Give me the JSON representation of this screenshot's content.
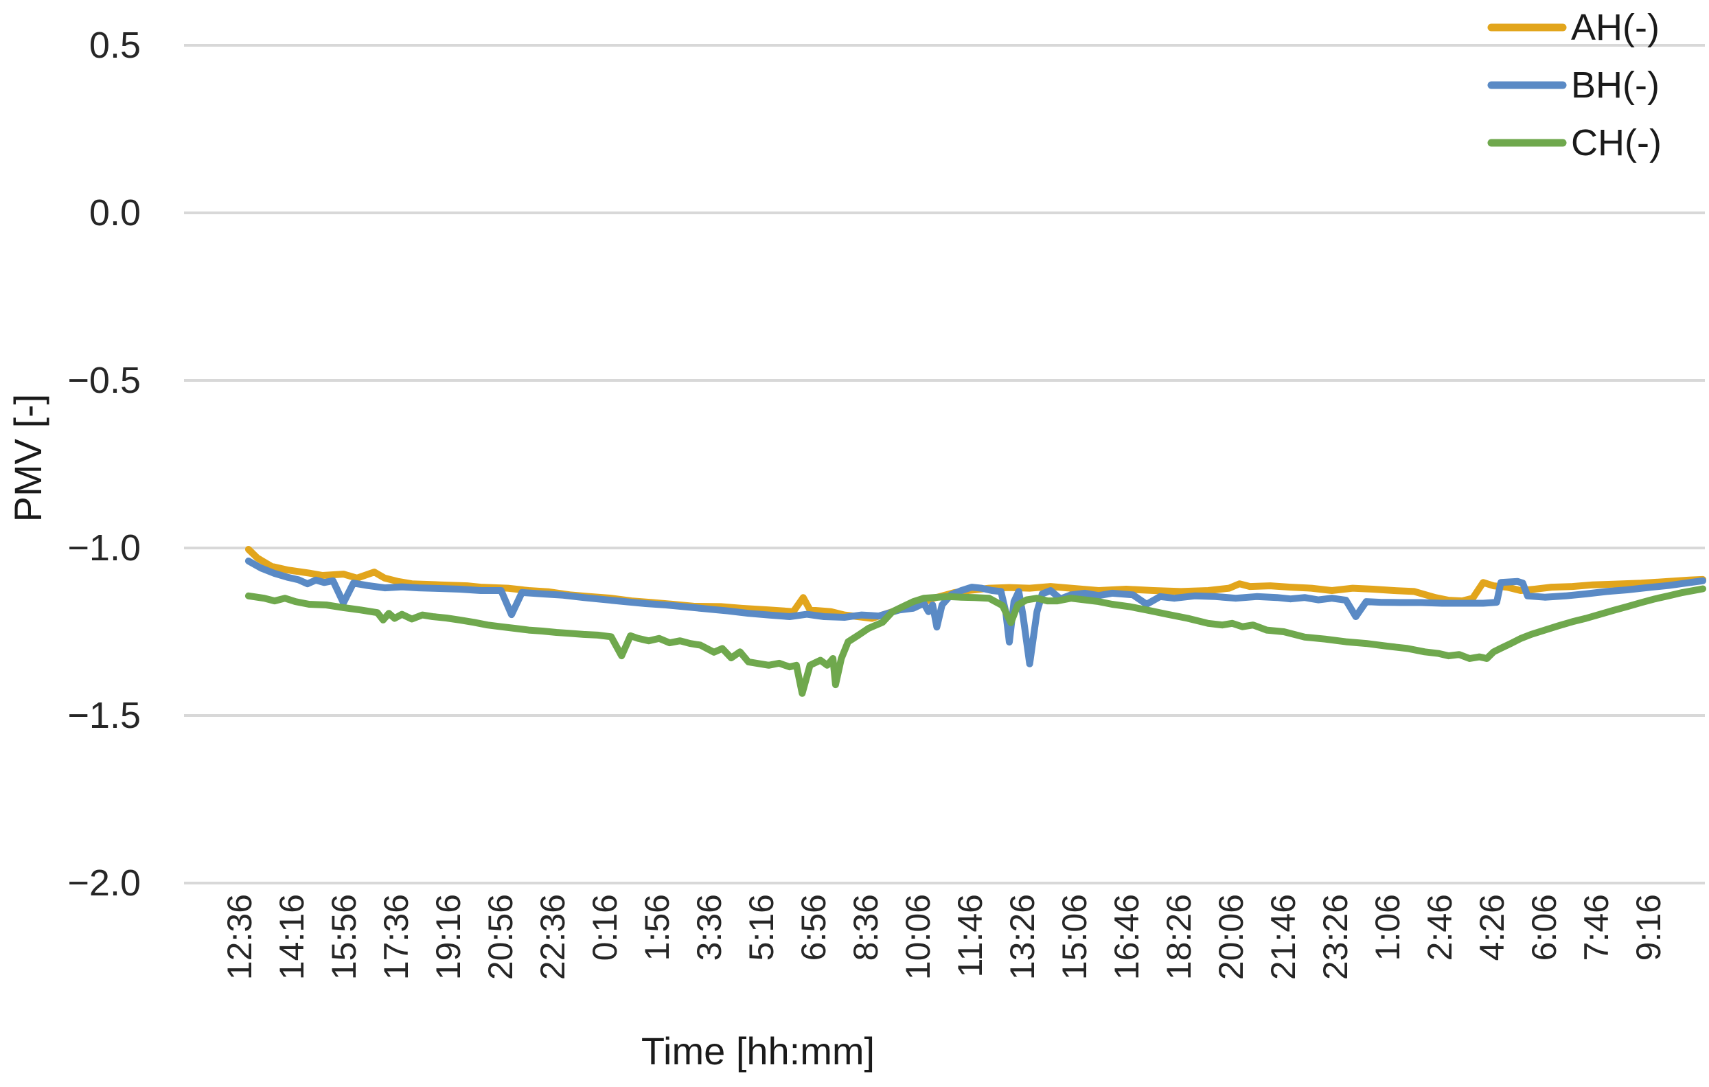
{
  "chart_data": {
    "type": "line",
    "title": "",
    "xlabel": "Time [hh:mm]",
    "ylabel": "PMV [-]",
    "ylim": [
      -2.0,
      0.5
    ],
    "grid": "horizontal",
    "legend_position": "top-right",
    "colors": {
      "background": "#FFFFFF",
      "gridline": "#D8D8D8",
      "axis_text": "#262626"
    },
    "y_ticks": [
      "0.5",
      "0.0",
      "−0.5",
      "−1.0",
      "−1.5",
      "−2.0"
    ],
    "y_tick_values": [
      0.5,
      0.0,
      -0.5,
      -1.0,
      -1.5,
      -2.0
    ],
    "x_tick_labels": [
      "12:36",
      "14:16",
      "15:56",
      "17:36",
      "19:16",
      "20:56",
      "22:36",
      "0:16",
      "1:56",
      "3:36",
      "5:16",
      "6:56",
      "8:36",
      "10:06",
      "11:46",
      "13:26",
      "15:06",
      "16:46",
      "18:26",
      "20:06",
      "21:46",
      "23:26",
      "1:06",
      "2:46",
      "4:26",
      "6:06",
      "7:46",
      "9:16"
    ],
    "x_unit": "minutes since first tick (12:36)",
    "x_tick_interval_minutes": 100,
    "series": [
      {
        "id": "ah",
        "name": "AH(-)",
        "color": "#E2A51C",
        "points": [
          [
            17,
            -1.004
          ],
          [
            34,
            -1.03
          ],
          [
            61,
            -1.055
          ],
          [
            93,
            -1.066
          ],
          [
            133,
            -1.075
          ],
          [
            159,
            -1.082
          ],
          [
            199,
            -1.078
          ],
          [
            225,
            -1.09
          ],
          [
            258,
            -1.072
          ],
          [
            278,
            -1.09
          ],
          [
            304,
            -1.1
          ],
          [
            330,
            -1.107
          ],
          [
            383,
            -1.11
          ],
          [
            436,
            -1.113
          ],
          [
            462,
            -1.117
          ],
          [
            514,
            -1.12
          ],
          [
            554,
            -1.127
          ],
          [
            593,
            -1.131
          ],
          [
            633,
            -1.14
          ],
          [
            672,
            -1.145
          ],
          [
            712,
            -1.15
          ],
          [
            751,
            -1.158
          ],
          [
            791,
            -1.163
          ],
          [
            830,
            -1.168
          ],
          [
            870,
            -1.174
          ],
          [
            922,
            -1.175
          ],
          [
            962,
            -1.18
          ],
          [
            1014,
            -1.185
          ],
          [
            1061,
            -1.19
          ],
          [
            1080,
            -1.148
          ],
          [
            1093,
            -1.185
          ],
          [
            1133,
            -1.19
          ],
          [
            1159,
            -1.2
          ],
          [
            1212,
            -1.21
          ],
          [
            1251,
            -1.19
          ],
          [
            1291,
            -1.174
          ],
          [
            1330,
            -1.15
          ],
          [
            1370,
            -1.133
          ],
          [
            1396,
            -1.127
          ],
          [
            1436,
            -1.12
          ],
          [
            1475,
            -1.118
          ],
          [
            1514,
            -1.12
          ],
          [
            1554,
            -1.115
          ],
          [
            1593,
            -1.12
          ],
          [
            1646,
            -1.127
          ],
          [
            1699,
            -1.123
          ],
          [
            1751,
            -1.127
          ],
          [
            1804,
            -1.13
          ],
          [
            1856,
            -1.127
          ],
          [
            1896,
            -1.12
          ],
          [
            1916,
            -1.107
          ],
          [
            1936,
            -1.115
          ],
          [
            1975,
            -1.113
          ],
          [
            2014,
            -1.117
          ],
          [
            2054,
            -1.12
          ],
          [
            2093,
            -1.127
          ],
          [
            2133,
            -1.12
          ],
          [
            2172,
            -1.123
          ],
          [
            2212,
            -1.127
          ],
          [
            2251,
            -1.13
          ],
          [
            2291,
            -1.148
          ],
          [
            2317,
            -1.156
          ],
          [
            2343,
            -1.158
          ],
          [
            2363,
            -1.15
          ],
          [
            2383,
            -1.103
          ],
          [
            2403,
            -1.113
          ],
          [
            2429,
            -1.117
          ],
          [
            2455,
            -1.127
          ],
          [
            2482,
            -1.123
          ],
          [
            2514,
            -1.117
          ],
          [
            2554,
            -1.115
          ],
          [
            2593,
            -1.11
          ],
          [
            2633,
            -1.108
          ],
          [
            2686,
            -1.105
          ],
          [
            2738,
            -1.1
          ],
          [
            2778,
            -1.096
          ],
          [
            2804,
            -1.094
          ]
        ]
      },
      {
        "id": "bh",
        "name": "BH(-)",
        "color": "#5A8AC5",
        "points": [
          [
            17,
            -1.039
          ],
          [
            41,
            -1.06
          ],
          [
            67,
            -1.076
          ],
          [
            93,
            -1.088
          ],
          [
            113,
            -1.095
          ],
          [
            130,
            -1.107
          ],
          [
            146,
            -1.096
          ],
          [
            162,
            -1.103
          ],
          [
            179,
            -1.098
          ],
          [
            199,
            -1.164
          ],
          [
            218,
            -1.105
          ],
          [
            245,
            -1.112
          ],
          [
            278,
            -1.119
          ],
          [
            311,
            -1.116
          ],
          [
            343,
            -1.119
          ],
          [
            383,
            -1.121
          ],
          [
            422,
            -1.123
          ],
          [
            462,
            -1.127
          ],
          [
            501,
            -1.127
          ],
          [
            521,
            -1.199
          ],
          [
            541,
            -1.133
          ],
          [
            580,
            -1.137
          ],
          [
            620,
            -1.141
          ],
          [
            659,
            -1.148
          ],
          [
            699,
            -1.154
          ],
          [
            738,
            -1.16
          ],
          [
            778,
            -1.166
          ],
          [
            817,
            -1.17
          ],
          [
            857,
            -1.176
          ],
          [
            896,
            -1.182
          ],
          [
            936,
            -1.188
          ],
          [
            975,
            -1.195
          ],
          [
            1014,
            -1.2
          ],
          [
            1054,
            -1.205
          ],
          [
            1087,
            -1.198
          ],
          [
            1120,
            -1.205
          ],
          [
            1159,
            -1.207
          ],
          [
            1192,
            -1.2
          ],
          [
            1225,
            -1.203
          ],
          [
            1264,
            -1.185
          ],
          [
            1291,
            -1.18
          ],
          [
            1311,
            -1.165
          ],
          [
            1320,
            -1.19
          ],
          [
            1328,
            -1.17
          ],
          [
            1336,
            -1.236
          ],
          [
            1346,
            -1.17
          ],
          [
            1363,
            -1.14
          ],
          [
            1383,
            -1.127
          ],
          [
            1403,
            -1.117
          ],
          [
            1422,
            -1.12
          ],
          [
            1442,
            -1.127
          ],
          [
            1459,
            -1.13
          ],
          [
            1468,
            -1.19
          ],
          [
            1475,
            -1.281
          ],
          [
            1484,
            -1.16
          ],
          [
            1493,
            -1.13
          ],
          [
            1501,
            -1.2
          ],
          [
            1514,
            -1.346
          ],
          [
            1528,
            -1.19
          ],
          [
            1538,
            -1.137
          ],
          [
            1554,
            -1.127
          ],
          [
            1573,
            -1.152
          ],
          [
            1593,
            -1.14
          ],
          [
            1620,
            -1.135
          ],
          [
            1646,
            -1.142
          ],
          [
            1672,
            -1.135
          ],
          [
            1712,
            -1.14
          ],
          [
            1738,
            -1.168
          ],
          [
            1764,
            -1.145
          ],
          [
            1791,
            -1.15
          ],
          [
            1830,
            -1.143
          ],
          [
            1870,
            -1.145
          ],
          [
            1909,
            -1.15
          ],
          [
            1949,
            -1.145
          ],
          [
            1988,
            -1.148
          ],
          [
            2014,
            -1.152
          ],
          [
            2041,
            -1.148
          ],
          [
            2067,
            -1.155
          ],
          [
            2093,
            -1.15
          ],
          [
            2120,
            -1.156
          ],
          [
            2139,
            -1.205
          ],
          [
            2159,
            -1.16
          ],
          [
            2186,
            -1.162
          ],
          [
            2225,
            -1.163
          ],
          [
            2264,
            -1.163
          ],
          [
            2304,
            -1.165
          ],
          [
            2343,
            -1.165
          ],
          [
            2383,
            -1.165
          ],
          [
            2409,
            -1.162
          ],
          [
            2417,
            -1.103
          ],
          [
            2449,
            -1.1
          ],
          [
            2459,
            -1.105
          ],
          [
            2468,
            -1.143
          ],
          [
            2501,
            -1.147
          ],
          [
            2541,
            -1.143
          ],
          [
            2580,
            -1.137
          ],
          [
            2620,
            -1.13
          ],
          [
            2659,
            -1.125
          ],
          [
            2699,
            -1.118
          ],
          [
            2738,
            -1.112
          ],
          [
            2771,
            -1.105
          ],
          [
            2804,
            -1.098
          ]
        ]
      },
      {
        "id": "ch",
        "name": "CH(-)",
        "color": "#6FA84D",
        "points": [
          [
            17,
            -1.143
          ],
          [
            47,
            -1.15
          ],
          [
            67,
            -1.158
          ],
          [
            87,
            -1.15
          ],
          [
            107,
            -1.16
          ],
          [
            133,
            -1.168
          ],
          [
            166,
            -1.17
          ],
          [
            199,
            -1.178
          ],
          [
            232,
            -1.185
          ],
          [
            264,
            -1.193
          ],
          [
            275,
            -1.215
          ],
          [
            286,
            -1.195
          ],
          [
            297,
            -1.21
          ],
          [
            311,
            -1.198
          ],
          [
            330,
            -1.212
          ],
          [
            350,
            -1.2
          ],
          [
            370,
            -1.205
          ],
          [
            396,
            -1.209
          ],
          [
            422,
            -1.215
          ],
          [
            449,
            -1.222
          ],
          [
            475,
            -1.23
          ],
          [
            501,
            -1.235
          ],
          [
            528,
            -1.24
          ],
          [
            554,
            -1.245
          ],
          [
            580,
            -1.248
          ],
          [
            607,
            -1.252
          ],
          [
            633,
            -1.255
          ],
          [
            659,
            -1.258
          ],
          [
            686,
            -1.26
          ],
          [
            712,
            -1.265
          ],
          [
            732,
            -1.322
          ],
          [
            749,
            -1.262
          ],
          [
            764,
            -1.27
          ],
          [
            784,
            -1.277
          ],
          [
            804,
            -1.27
          ],
          [
            824,
            -1.283
          ],
          [
            844,
            -1.277
          ],
          [
            863,
            -1.285
          ],
          [
            883,
            -1.29
          ],
          [
            909,
            -1.311
          ],
          [
            925,
            -1.3
          ],
          [
            942,
            -1.328
          ],
          [
            959,
            -1.31
          ],
          [
            975,
            -1.34
          ],
          [
            995,
            -1.345
          ],
          [
            1014,
            -1.35
          ],
          [
            1034,
            -1.344
          ],
          [
            1054,
            -1.355
          ],
          [
            1067,
            -1.35
          ],
          [
            1078,
            -1.434
          ],
          [
            1093,
            -1.35
          ],
          [
            1113,
            -1.335
          ],
          [
            1126,
            -1.35
          ],
          [
            1137,
            -1.33
          ],
          [
            1142,
            -1.408
          ],
          [
            1153,
            -1.33
          ],
          [
            1166,
            -1.28
          ],
          [
            1186,
            -1.26
          ],
          [
            1205,
            -1.24
          ],
          [
            1232,
            -1.222
          ],
          [
            1251,
            -1.19
          ],
          [
            1271,
            -1.175
          ],
          [
            1291,
            -1.16
          ],
          [
            1311,
            -1.15
          ],
          [
            1330,
            -1.148
          ],
          [
            1357,
            -1.145
          ],
          [
            1383,
            -1.147
          ],
          [
            1409,
            -1.148
          ],
          [
            1436,
            -1.15
          ],
          [
            1462,
            -1.172
          ],
          [
            1478,
            -1.223
          ],
          [
            1491,
            -1.17
          ],
          [
            1508,
            -1.155
          ],
          [
            1528,
            -1.15
          ],
          [
            1548,
            -1.158
          ],
          [
            1567,
            -1.158
          ],
          [
            1593,
            -1.15
          ],
          [
            1620,
            -1.155
          ],
          [
            1646,
            -1.16
          ],
          [
            1672,
            -1.168
          ],
          [
            1705,
            -1.175
          ],
          [
            1738,
            -1.185
          ],
          [
            1778,
            -1.198
          ],
          [
            1817,
            -1.21
          ],
          [
            1856,
            -1.225
          ],
          [
            1883,
            -1.23
          ],
          [
            1902,
            -1.225
          ],
          [
            1922,
            -1.235
          ],
          [
            1942,
            -1.23
          ],
          [
            1968,
            -1.245
          ],
          [
            2001,
            -1.25
          ],
          [
            2041,
            -1.266
          ],
          [
            2080,
            -1.272
          ],
          [
            2120,
            -1.28
          ],
          [
            2159,
            -1.285
          ],
          [
            2199,
            -1.293
          ],
          [
            2238,
            -1.3
          ],
          [
            2271,
            -1.31
          ],
          [
            2298,
            -1.315
          ],
          [
            2317,
            -1.322
          ],
          [
            2337,
            -1.318
          ],
          [
            2357,
            -1.33
          ],
          [
            2376,
            -1.325
          ],
          [
            2390,
            -1.33
          ],
          [
            2403,
            -1.31
          ],
          [
            2416,
            -1.3
          ],
          [
            2436,
            -1.285
          ],
          [
            2455,
            -1.27
          ],
          [
            2475,
            -1.258
          ],
          [
            2501,
            -1.245
          ],
          [
            2528,
            -1.232
          ],
          [
            2554,
            -1.22
          ],
          [
            2580,
            -1.21
          ],
          [
            2607,
            -1.198
          ],
          [
            2633,
            -1.186
          ],
          [
            2659,
            -1.175
          ],
          [
            2686,
            -1.163
          ],
          [
            2712,
            -1.152
          ],
          [
            2738,
            -1.143
          ],
          [
            2765,
            -1.133
          ],
          [
            2804,
            -1.122
          ]
        ]
      }
    ]
  }
}
